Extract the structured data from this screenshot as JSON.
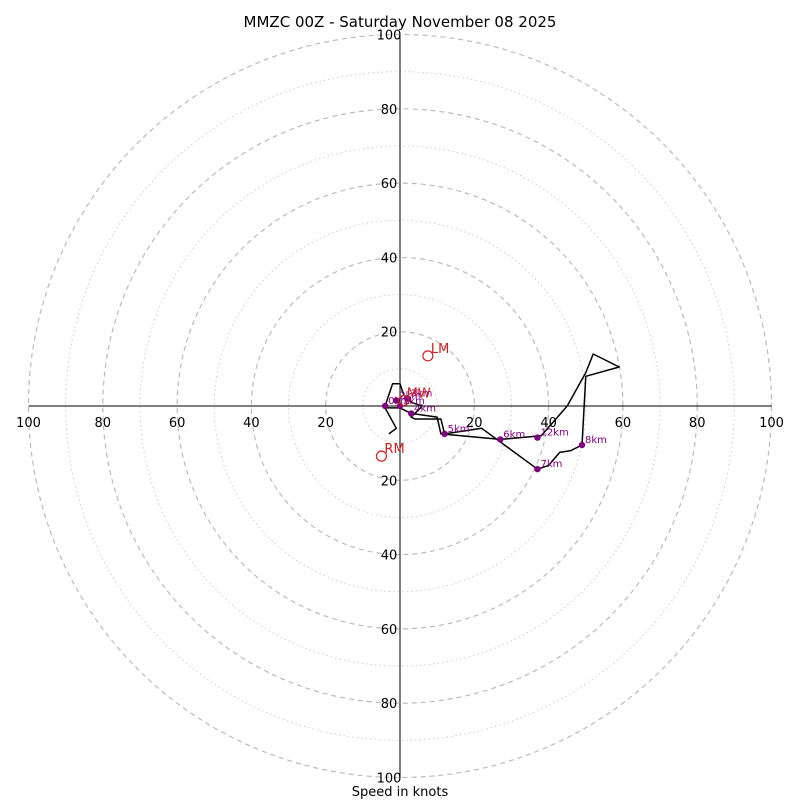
{
  "chart_data": {
    "type": "hodograph",
    "title": "MMZC 00Z - Saturday November 08 2025",
    "xlabel": "Speed in knots",
    "ring_step": 20,
    "ring_minor_step": 10,
    "max_speed": 100,
    "x_tick_labels": [
      "100",
      "80",
      "60",
      "40",
      "20",
      "20",
      "40",
      "60",
      "80",
      "100"
    ],
    "x_tick_values": [
      -100,
      -80,
      -60,
      -40,
      -20,
      20,
      40,
      60,
      80,
      100
    ],
    "y_tick_labels": [
      "100",
      "80",
      "60",
      "40",
      "20",
      "20",
      "40",
      "60",
      "80",
      "100"
    ],
    "y_tick_values": [
      100,
      80,
      60,
      40,
      20,
      -20,
      -40,
      -60,
      -80,
      -100
    ],
    "trace_color": "#000000",
    "marker_color": "#800080",
    "storm_color": "#cc2222",
    "trace": [
      [
        -4,
        0
      ],
      [
        -2,
        6
      ],
      [
        0,
        6
      ],
      [
        1,
        3
      ],
      [
        3,
        1
      ],
      [
        6,
        0
      ],
      [
        3,
        -3
      ],
      [
        4,
        -3.5
      ],
      [
        11,
        -3.5
      ],
      [
        12,
        -7.5
      ],
      [
        22,
        -6
      ],
      [
        37,
        -17
      ],
      [
        40,
        -16
      ],
      [
        43,
        -12.5
      ],
      [
        46,
        -12
      ],
      [
        49,
        -10.5
      ],
      [
        50,
        8
      ],
      [
        59,
        10.5
      ],
      [
        52,
        14
      ],
      [
        50,
        9
      ],
      [
        45,
        0
      ],
      [
        38,
        -8
      ],
      [
        27,
        -9
      ],
      [
        11,
        -7.5
      ],
      [
        10,
        -3
      ],
      [
        3,
        -2
      ],
      [
        0,
        -0.5
      ],
      [
        -4,
        -0.5
      ],
      [
        -1,
        -6
      ],
      [
        -3,
        -7.5
      ]
    ],
    "km_markers": [
      {
        "label": "0km",
        "u": -4,
        "v": 0
      },
      {
        "label": "1km",
        "u": 0,
        "v": 0
      },
      {
        "label": "2km",
        "u": -1,
        "v": 1.5
      },
      {
        "label": "3km",
        "u": 2,
        "v": 2
      },
      {
        "label": "4km",
        "u": 3,
        "v": -2
      },
      {
        "label": "5km",
        "u": 12,
        "v": -7.5
      },
      {
        "label": "6km",
        "u": 27,
        "v": -9
      },
      {
        "label": "7km",
        "u": 37,
        "v": -17
      },
      {
        "label": "8km",
        "u": 49,
        "v": -10.5
      },
      {
        "label": "12km",
        "u": 37,
        "v": -8.5
      }
    ],
    "storm_motion": [
      {
        "label": "LM",
        "u": 7.5,
        "v": 13.5
      },
      {
        "label": "RM",
        "u": -5,
        "v": -13.5
      },
      {
        "label": "MW",
        "u": 1,
        "v": 1.5
      }
    ]
  }
}
